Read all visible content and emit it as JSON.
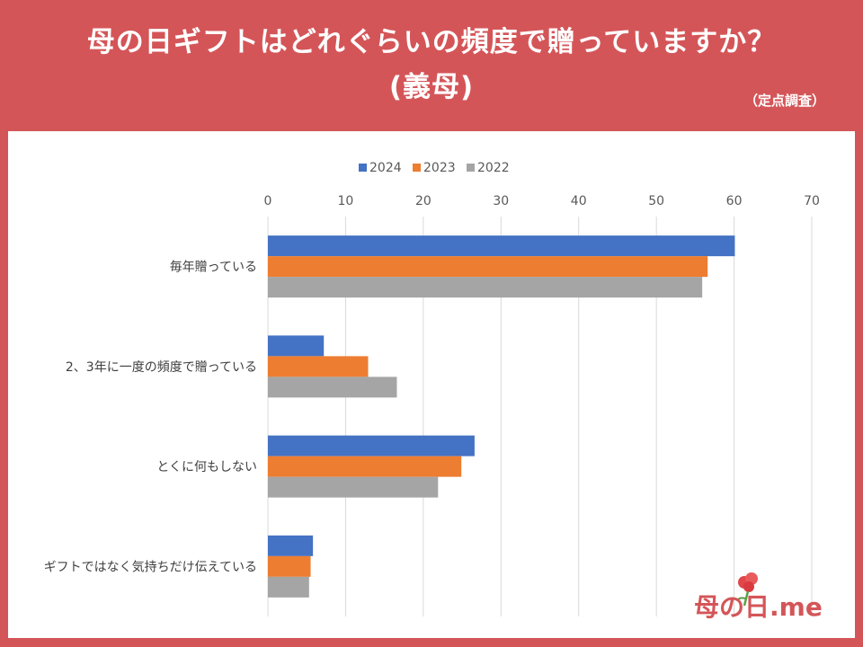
{
  "title_line1": "母の日ギフトはどれぐらいの頻度で贈っていますか？",
  "title_line2": "(義母)",
  "note": "（定点調査）",
  "logo_text": "母の日.me",
  "chart_data": {
    "type": "bar",
    "orientation": "horizontal",
    "categories": [
      "毎年贈っている",
      "2、3年に一度の頻度で贈っている",
      "とくに何もしない",
      "ギフトではなく気持ちだけ伝えている"
    ],
    "series": [
      {
        "name": "2024",
        "color": "#4472c4",
        "values": [
          60.1,
          7.2,
          26.6,
          5.8
        ]
      },
      {
        "name": "2023",
        "color": "#ed7d31",
        "values": [
          56.6,
          12.9,
          24.9,
          5.5
        ]
      },
      {
        "name": "2022",
        "color": "#a5a5a5",
        "values": [
          55.9,
          16.6,
          21.9,
          5.3
        ]
      }
    ],
    "xlim": [
      0,
      70
    ],
    "xticks": [
      "0",
      "10",
      "20",
      "30",
      "40",
      "50",
      "60",
      "70"
    ],
    "legend_position": "top",
    "grid": true
  }
}
